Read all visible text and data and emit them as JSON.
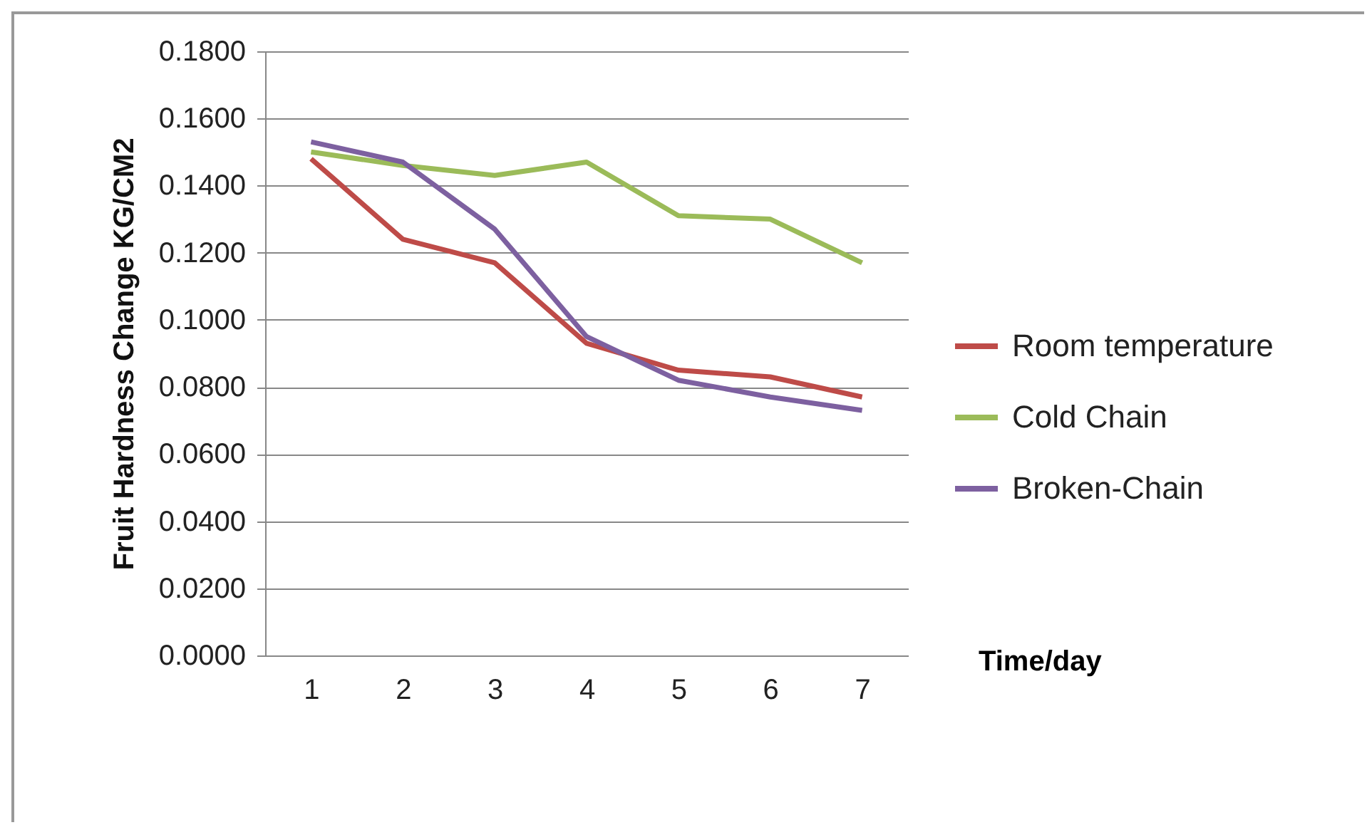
{
  "chart_data": {
    "type": "line",
    "xlabel": "Time/day",
    "ylabel": "Fruit Hardness Change KG/CM2",
    "categories": [
      "1",
      "2",
      "3",
      "4",
      "5",
      "6",
      "7"
    ],
    "series": [
      {
        "name": "Room temperature",
        "color": "#be4b48",
        "values": [
          0.148,
          0.124,
          0.117,
          0.093,
          0.085,
          0.083,
          0.077
        ]
      },
      {
        "name": "Cold Chain",
        "color": "#9bbb59",
        "values": [
          0.15,
          0.146,
          0.143,
          0.147,
          0.131,
          0.13,
          0.117
        ]
      },
      {
        "name": "Broken-Chain",
        "color": "#7d60a0",
        "values": [
          0.153,
          0.147,
          0.127,
          0.095,
          0.082,
          0.077,
          0.073
        ]
      }
    ],
    "ylim": [
      0,
      0.18
    ],
    "yticks": [
      {
        "value": 0,
        "label": "0.0000"
      },
      {
        "value": 0.02,
        "label": "0.0200"
      },
      {
        "value": 0.04,
        "label": "0.0400"
      },
      {
        "value": 0.06,
        "label": "0.0600"
      },
      {
        "value": 0.08,
        "label": "0.0800"
      },
      {
        "value": 0.1,
        "label": "0.1000"
      },
      {
        "value": 0.12,
        "label": "0.1200"
      },
      {
        "value": 0.14,
        "label": "0.1400"
      },
      {
        "value": 0.16,
        "label": "0.1600"
      },
      {
        "value": 0.18,
        "label": "0.1800"
      }
    ],
    "grid": "y",
    "legend": "right",
    "marker": "none",
    "line_style": "solid"
  }
}
